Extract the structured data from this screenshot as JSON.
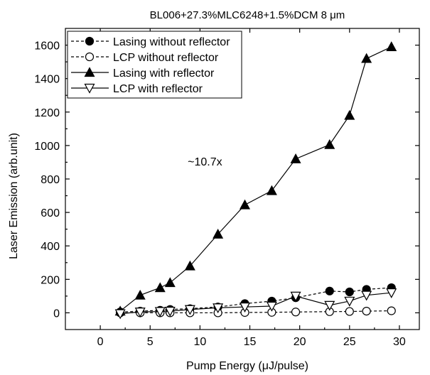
{
  "chart_data": {
    "type": "line",
    "title": "BL006+27.3%MLC6248+1.5%DCM 8 μm",
    "xlabel": "Pump Energy (μJ/pulse)",
    "ylabel": "Laser Emission (arb.unit)",
    "xlim": [
      -3.5,
      32
    ],
    "ylim": [
      -100,
      1700
    ],
    "xticks": [
      0,
      5,
      10,
      15,
      20,
      25,
      30
    ],
    "yticks": [
      0,
      200,
      400,
      600,
      800,
      1000,
      1200,
      1400,
      1600
    ],
    "grid": false,
    "legend_position": "top-left",
    "annotations": [
      {
        "text": "~10.7x",
        "x": 10.5,
        "y": 880
      }
    ],
    "series": [
      {
        "name": "Lasing without reflector",
        "marker": "filled-circle",
        "line": "dashed",
        "x": [
          2,
          4,
          6,
          7,
          9,
          11.8,
          14.5,
          17.2,
          19.6,
          23,
          25,
          26.7,
          29.2
        ],
        "y": [
          5,
          10,
          15,
          20,
          25,
          35,
          55,
          70,
          90,
          130,
          125,
          140,
          150
        ]
      },
      {
        "name": "LCP without reflector",
        "marker": "open-circle",
        "line": "dashed",
        "x": [
          2,
          4,
          6,
          7,
          9,
          11.8,
          14.5,
          17.2,
          19.6,
          23,
          25,
          26.7,
          29.2
        ],
        "y": [
          0,
          0,
          0,
          0,
          0,
          0,
          2,
          3,
          5,
          7,
          8,
          10,
          12
        ]
      },
      {
        "name": "Lasing with reflector",
        "marker": "filled-triangle-up",
        "line": "solid",
        "x": [
          2,
          4,
          6,
          7,
          9,
          11.8,
          14.5,
          17.2,
          19.6,
          23,
          25,
          26.7,
          29.2
        ],
        "y": [
          10,
          105,
          150,
          180,
          280,
          470,
          645,
          730,
          920,
          1005,
          1180,
          1520,
          1590
        ]
      },
      {
        "name": "LCP with reflector",
        "marker": "open-triangle-down",
        "line": "solid",
        "x": [
          2,
          4,
          6,
          7,
          9,
          11.8,
          14.5,
          17.2,
          19.6,
          23,
          25,
          26.7,
          29.2
        ],
        "y": [
          -5,
          5,
          8,
          10,
          20,
          30,
          35,
          40,
          100,
          45,
          70,
          105,
          120
        ]
      }
    ]
  }
}
